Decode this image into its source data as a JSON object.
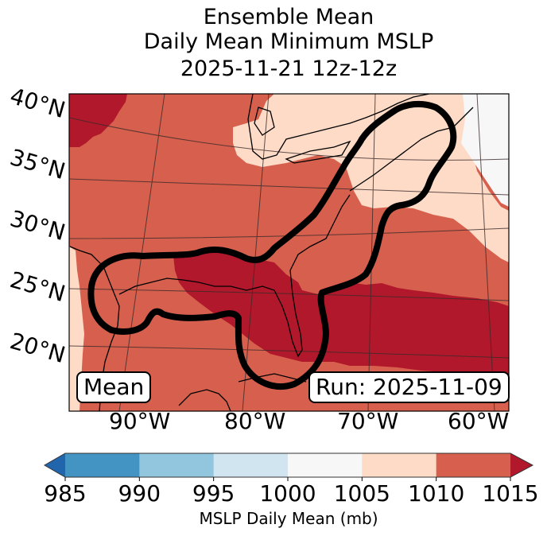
{
  "title": {
    "line1": "Ensemble Mean",
    "line2": "Daily Mean Minimum MSLP",
    "line3": "2025-11-21 12z-12z"
  },
  "map": {
    "projection": "conic",
    "extent": {
      "lon_min": -98,
      "lon_max": -58,
      "lat_min": 17,
      "lat_max": 42
    },
    "lat_labels": [
      "40°N",
      "35°N",
      "30°N",
      "25°N",
      "20°N"
    ],
    "lon_labels": [
      "90°W",
      "80°W",
      "70°W",
      "60°W"
    ],
    "field": "MSLP daily mean (mb)",
    "regions": [
      {
        "name": "background",
        "range": "1010-1015",
        "color": "#d6604d"
      },
      {
        "name": "upper-left-high",
        "range": ">1015",
        "color": "#b2182b"
      },
      {
        "name": "gulf-florida-bahamas-atlantic-band",
        "range": ">1015",
        "color": "#b2182b"
      },
      {
        "name": "great-lakes-northeast",
        "range": "1005-1010",
        "color": "#fddbc7"
      },
      {
        "name": "western-gulf-edge",
        "range": "1005-1010",
        "color": "#fddbc7"
      },
      {
        "name": "northwest-atlantic",
        "range": "1000-1005",
        "color": "#f7f7f7"
      }
    ],
    "contour_note": "thick black outline enclosing Gulf of Mexico, Florida, and US East Coast to Nova Scotia",
    "mean_label": "Mean",
    "run_label": "Run: 2025-11-09"
  },
  "colorbar": {
    "label": "MSLP Daily Mean (mb)",
    "ticks": [
      "985",
      "990",
      "995",
      "1000",
      "1005",
      "1010",
      "1015"
    ],
    "bins": [
      {
        "from": 985,
        "to": 990,
        "color": "#4393c3"
      },
      {
        "from": 990,
        "to": 995,
        "color": "#92c5de"
      },
      {
        "from": 995,
        "to": 1000,
        "color": "#d1e5f0"
      },
      {
        "from": 1000,
        "to": 1005,
        "color": "#f7f7f7"
      },
      {
        "from": 1005,
        "to": 1010,
        "color": "#fddbc7"
      },
      {
        "from": 1010,
        "to": 1015,
        "color": "#d6604d"
      }
    ],
    "under_color": "#2166ac",
    "over_color": "#b2182b",
    "extend": "both"
  }
}
